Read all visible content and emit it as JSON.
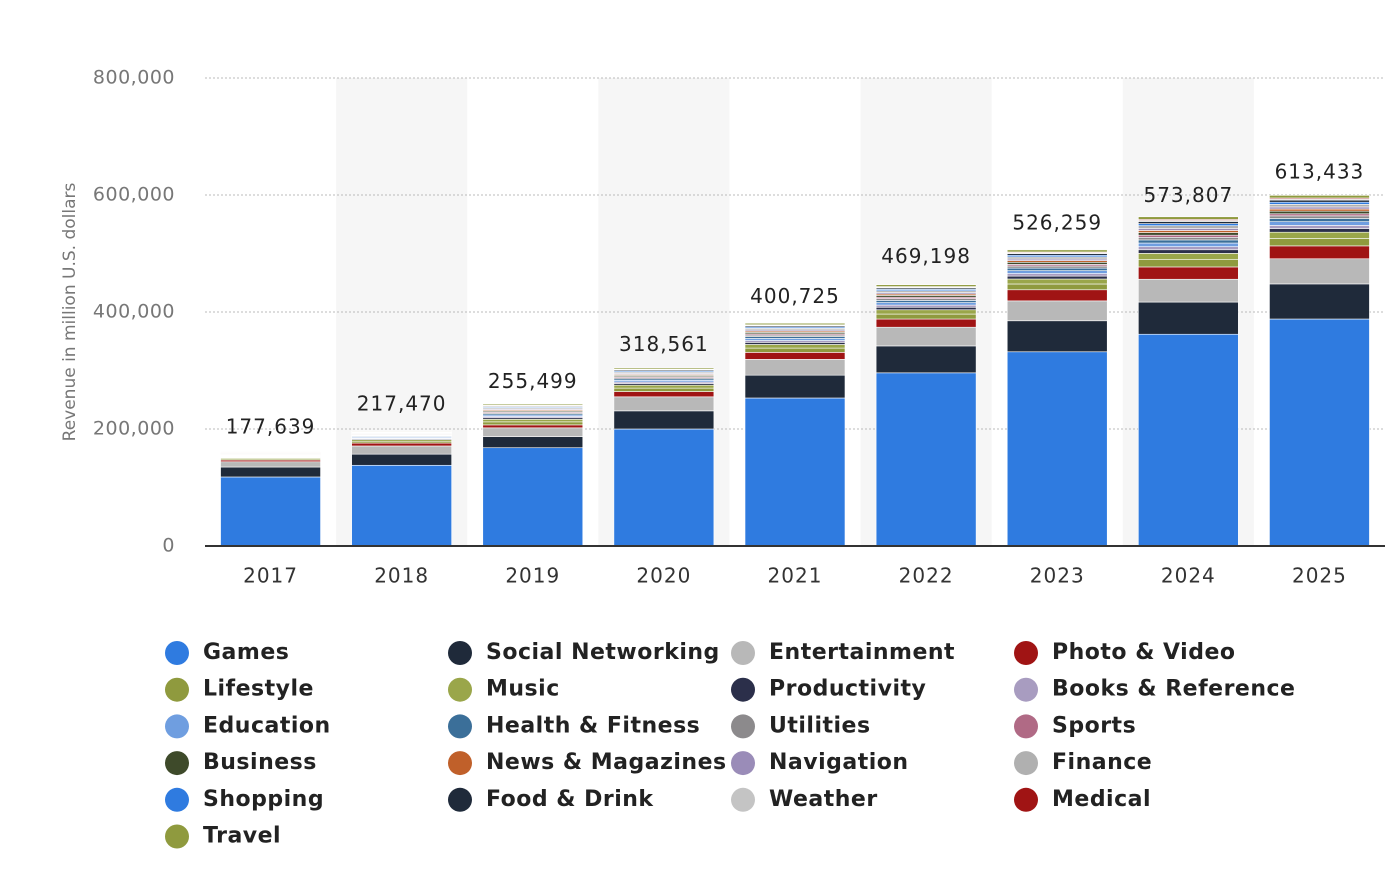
{
  "chart_data": {
    "type": "stacked-bar",
    "y_label": "Revenue in million U.S. dollars",
    "categories": [
      "2017",
      "2018",
      "2019",
      "2020",
      "2021",
      "2022",
      "2023",
      "2024",
      "2025"
    ],
    "ylim": [
      0,
      800000
    ],
    "yticks": [
      0,
      {
        "value": 200000,
        "label": "200,000"
      },
      {
        "value": 400000,
        "label": "400,000"
      },
      {
        "value": 600000,
        "label": "600,000"
      },
      {
        "value": 800000,
        "label": "800,000"
      }
    ],
    "grid": true,
    "totals": {
      "values": [
        177639,
        217470,
        255499,
        318561,
        400725,
        469198,
        526259,
        573807,
        613433
      ],
      "value_labels": [
        "177,639",
        "217,470",
        "255,499",
        "318,561",
        "400,725",
        "469,198",
        "526,259",
        "573,807",
        "613,433"
      ]
    },
    "series": [
      {
        "name": "Games",
        "color": "#2f7be0",
        "values": [
          118000,
          138000,
          168000,
          200000,
          253000,
          296000,
          332000,
          362000,
          388000
        ]
      },
      {
        "name": "Social Networking",
        "color": "#1f2a3a",
        "values": [
          17000,
          19000,
          19000,
          31000,
          39000,
          46000,
          53000,
          55000,
          60000
        ]
      },
      {
        "name": "Entertainment",
        "color": "#b8b8b8",
        "values": [
          9000,
          14000,
          15000,
          24000,
          27000,
          32000,
          34000,
          39000,
          43000
        ]
      },
      {
        "name": "Photo & Video",
        "color": "#a01414",
        "values": [
          3000,
          5000,
          5000,
          9000,
          12000,
          14000,
          19000,
          21000,
          22000
        ]
      },
      {
        "name": "Lifestyle",
        "color": "#8f9a3e",
        "values": [
          2000,
          3100,
          5200,
          5900,
          7300,
          8500,
          9900,
          12500,
          12600
        ]
      },
      {
        "name": "Music",
        "color": "#9aa64a",
        "values": [
          1700,
          2600,
          4400,
          5000,
          6200,
          7300,
          8500,
          10700,
          10800
        ]
      },
      {
        "name": "Productivity",
        "color": "#2b2f4a",
        "values": [
          1000,
          1500,
          2600,
          2900,
          3600,
          4300,
          5000,
          6200,
          6300
        ]
      },
      {
        "name": "Books & Reference",
        "color": "#a89cc0",
        "values": [
          800,
          1300,
          2200,
          2500,
          3100,
          3700,
          4300,
          5300,
          5400
        ]
      },
      {
        "name": "Education",
        "color": "#6f9ee0",
        "values": [
          1000,
          1500,
          2600,
          2900,
          3600,
          4300,
          5000,
          6200,
          6300
        ]
      },
      {
        "name": "Health & Fitness",
        "color": "#3b6f99",
        "values": [
          800,
          1300,
          2200,
          2500,
          3100,
          3700,
          4300,
          5300,
          5400
        ]
      },
      {
        "name": "Utilities",
        "color": "#8c8a8c",
        "values": [
          700,
          1100,
          1900,
          2100,
          2600,
          3100,
          3600,
          4500,
          4500
        ]
      },
      {
        "name": "Sports",
        "color": "#b06a85",
        "values": [
          600,
          900,
          1500,
          1700,
          2100,
          2400,
          2800,
          3600,
          3600
        ]
      },
      {
        "name": "Business",
        "color": "#3e4a2a",
        "values": [
          700,
          1100,
          1900,
          2100,
          2600,
          3100,
          3600,
          4500,
          4500
        ]
      },
      {
        "name": "News & Magazines",
        "color": "#c0602a",
        "values": [
          600,
          900,
          1500,
          1700,
          2100,
          2400,
          2800,
          3600,
          3600
        ]
      },
      {
        "name": "Navigation",
        "color": "#9a8cb8",
        "values": [
          600,
          900,
          1500,
          1700,
          2100,
          2400,
          2800,
          3600,
          3600
        ]
      },
      {
        "name": "Finance",
        "color": "#b0b0b0",
        "values": [
          700,
          1100,
          1900,
          2100,
          2600,
          3100,
          3600,
          4500,
          4500
        ]
      },
      {
        "name": "Shopping",
        "color": "#2f7be0",
        "values": [
          600,
          900,
          1500,
          1700,
          2100,
          2400,
          2800,
          3600,
          3600
        ]
      },
      {
        "name": "Food & Drink",
        "color": "#1f2a3a",
        "values": [
          600,
          900,
          1500,
          1700,
          2100,
          2400,
          2800,
          3600,
          3600
        ]
      },
      {
        "name": "Weather",
        "color": "#c4c4c4",
        "values": [
          300,
          400,
          700,
          800,
          1000,
          1200,
          1400,
          1800,
          1800
        ]
      },
      {
        "name": "Medical",
        "color": "#a01414",
        "values": [
          300,
          400,
          700,
          800,
          1000,
          1200,
          1400,
          1800,
          1800
        ]
      },
      {
        "name": "Travel",
        "color": "#8f9a3e",
        "values": [
          700,
          1100,
          1900,
          2100,
          2600,
          3100,
          3600,
          4500,
          4500
        ]
      }
    ]
  }
}
